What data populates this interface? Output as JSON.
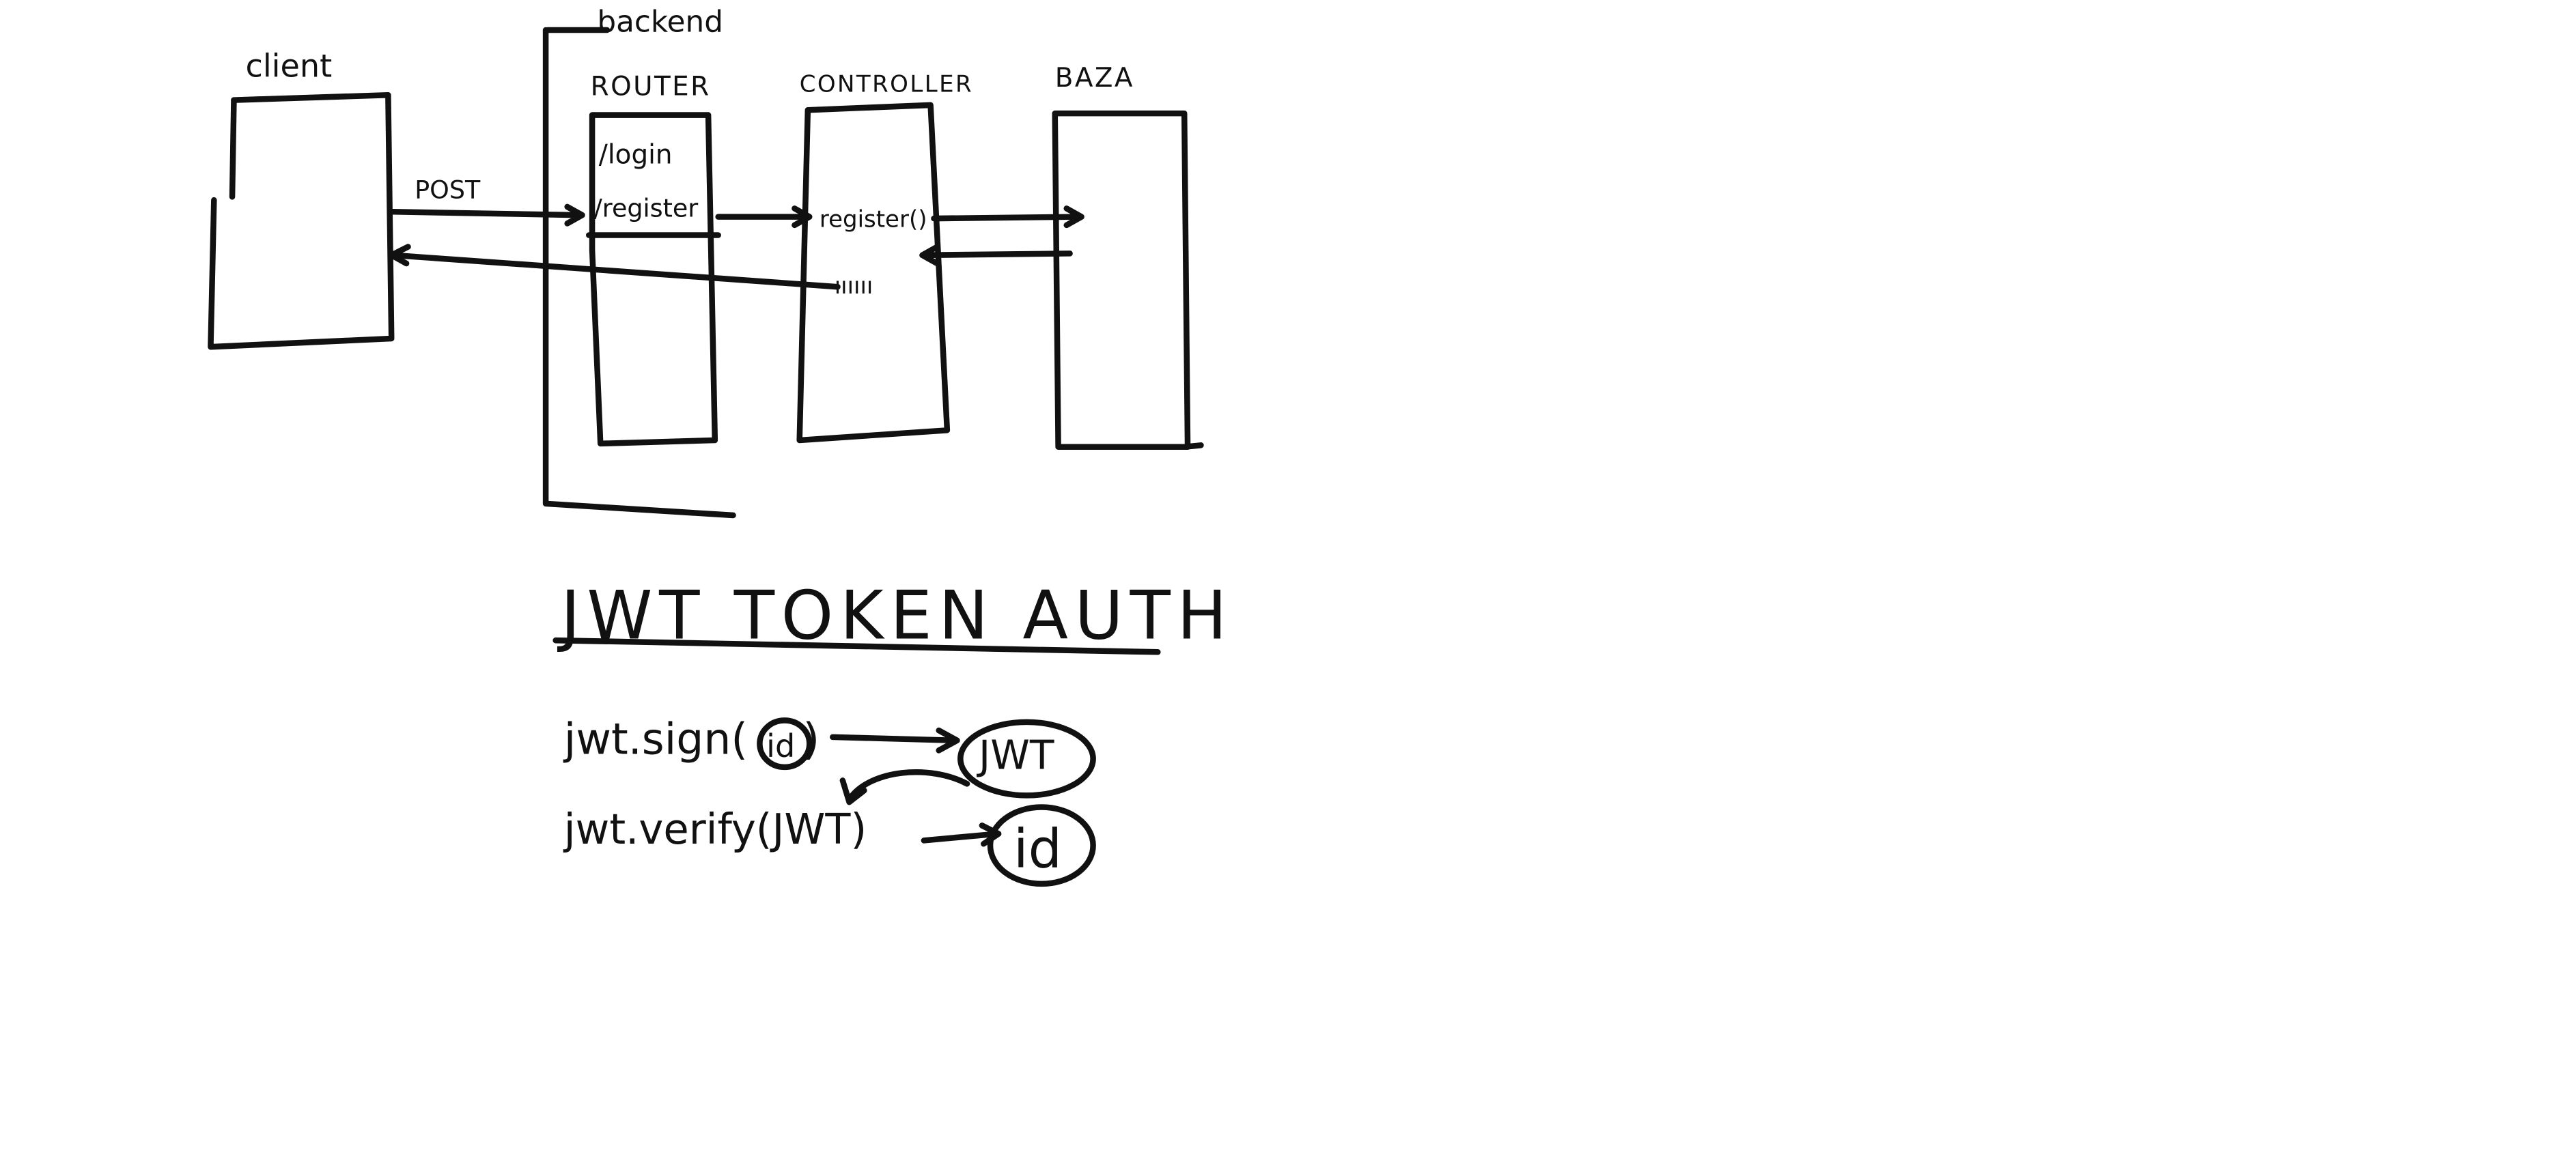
{
  "diagram": {
    "backend_label": "backend",
    "client_label": "client",
    "router": {
      "title": "ROUTER",
      "routes": [
        "/login",
        "/register"
      ]
    },
    "controller": {
      "title": "CONTROLLER",
      "method": "register()",
      "scribble": "ıııııı"
    },
    "database": {
      "title": "BAZA"
    },
    "request_label": "POST"
  },
  "jwt": {
    "heading": "JWT TOKEN AUTH",
    "sign_prefix": "jwt.sign(",
    "sign_arg": "id",
    "sign_suffix": ")",
    "sign_result": "JWT",
    "verify_call": "jwt.verify(JWT)",
    "verify_result": "id"
  }
}
